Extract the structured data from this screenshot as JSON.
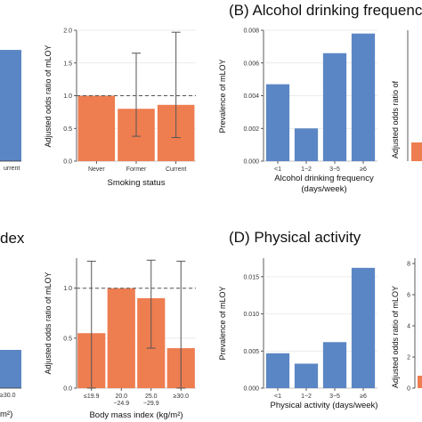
{
  "panel_titles": {
    "top_right": "(B) Alcohol drinking frequency",
    "bottom_left": "dex",
    "bottom_right": "(D) Physical activity"
  },
  "colors": {
    "blue": "#5b86c5",
    "orange": "#ee7d50",
    "axis": "#333333",
    "grid": "#e4e4e4"
  },
  "chart_data": [
    {
      "id": "smoking-prevalence-partial",
      "type": "bar",
      "categories": [
        "Current"
      ],
      "category_labels_visible": [
        "urrent"
      ],
      "values": [
        0.0068
      ],
      "ylim": [
        0,
        0.008
      ],
      "ylabel": "",
      "xlabel": ""
    },
    {
      "id": "smoking-odds",
      "type": "bar",
      "categories": [
        "Never",
        "Former",
        "Current"
      ],
      "values": [
        1.0,
        0.8,
        0.86
      ],
      "error_low": [
        1.0,
        0.38,
        0.36
      ],
      "error_high": [
        1.0,
        1.65,
        1.97
      ],
      "reference_line": 1.0,
      "ylim": [
        0,
        2.0
      ],
      "yticks": [
        "0.0",
        "0.5",
        "1.0",
        "1.5",
        "2.0"
      ],
      "ylabel": "Adjusted odds ratio of mLOY",
      "xlabel": "Smoking status"
    },
    {
      "id": "alcohol-prevalence",
      "type": "bar",
      "categories": [
        "<1",
        "1−2",
        "3−5",
        "≥6"
      ],
      "values": [
        0.0047,
        0.002,
        0.0066,
        0.0078
      ],
      "ylim": [
        0,
        0.008
      ],
      "yticks": [
        "0.000",
        "0.002",
        "0.004",
        "0.006",
        "0.008"
      ],
      "ylabel": "Prevalence of mLOY",
      "xlabel_line1": "Alcohol drinking frequency",
      "xlabel_line2": "(days/week)"
    },
    {
      "id": "alcohol-odds-partial",
      "type": "bar",
      "ylabel": "Adjusted odds ratio of"
    },
    {
      "id": "bmi-prevalence-partial",
      "type": "bar",
      "categories": [
        "≥30.0"
      ],
      "category_labels_visible": [
        "≥30.0"
      ],
      "values": [
        0.0013
      ],
      "xlabel_visible": "m²)"
    },
    {
      "id": "bmi-odds",
      "type": "bar",
      "categories": [
        "≤19.9",
        "20.0−24.9",
        "25.0−29.9",
        "≥30.0"
      ],
      "tick_line1": [
        "≤19.9",
        "20.0",
        "25.0",
        "≥30.0"
      ],
      "tick_line2": [
        "",
        "−24.9",
        "−29.9",
        ""
      ],
      "values": [
        0.55,
        1.0,
        0.9,
        0.4
      ],
      "error_low": [
        0.0,
        1.0,
        0.4,
        0.0
      ],
      "error_high": [
        1.27,
        1.0,
        1.28,
        1.27
      ],
      "reference_line": 1.0,
      "ylim": [
        0,
        1.3
      ],
      "yticks": [
        "0.0",
        "0.5",
        "1.0"
      ],
      "ylabel": "Adjusted odds ratio of mLOY",
      "xlabel": "Body mass index (kg/m²)"
    },
    {
      "id": "activity-prevalence",
      "type": "bar",
      "categories": [
        "<1",
        "1−2",
        "3−5",
        "≥6"
      ],
      "values": [
        0.0047,
        0.0033,
        0.0062,
        0.0162
      ],
      "ylim": [
        0,
        0.0175
      ],
      "yticks": [
        "0.000",
        "0.005",
        "0.010",
        "0.015"
      ],
      "ylabel": "Prevalence of mLOY",
      "xlabel_line1": "Physical activity (days/week)"
    },
    {
      "id": "activity-odds-partial",
      "type": "bar",
      "yticks": [
        "0",
        "2",
        "4",
        "6",
        "8"
      ],
      "ylabel": "Adjusted odds ratio of mLOY"
    }
  ]
}
